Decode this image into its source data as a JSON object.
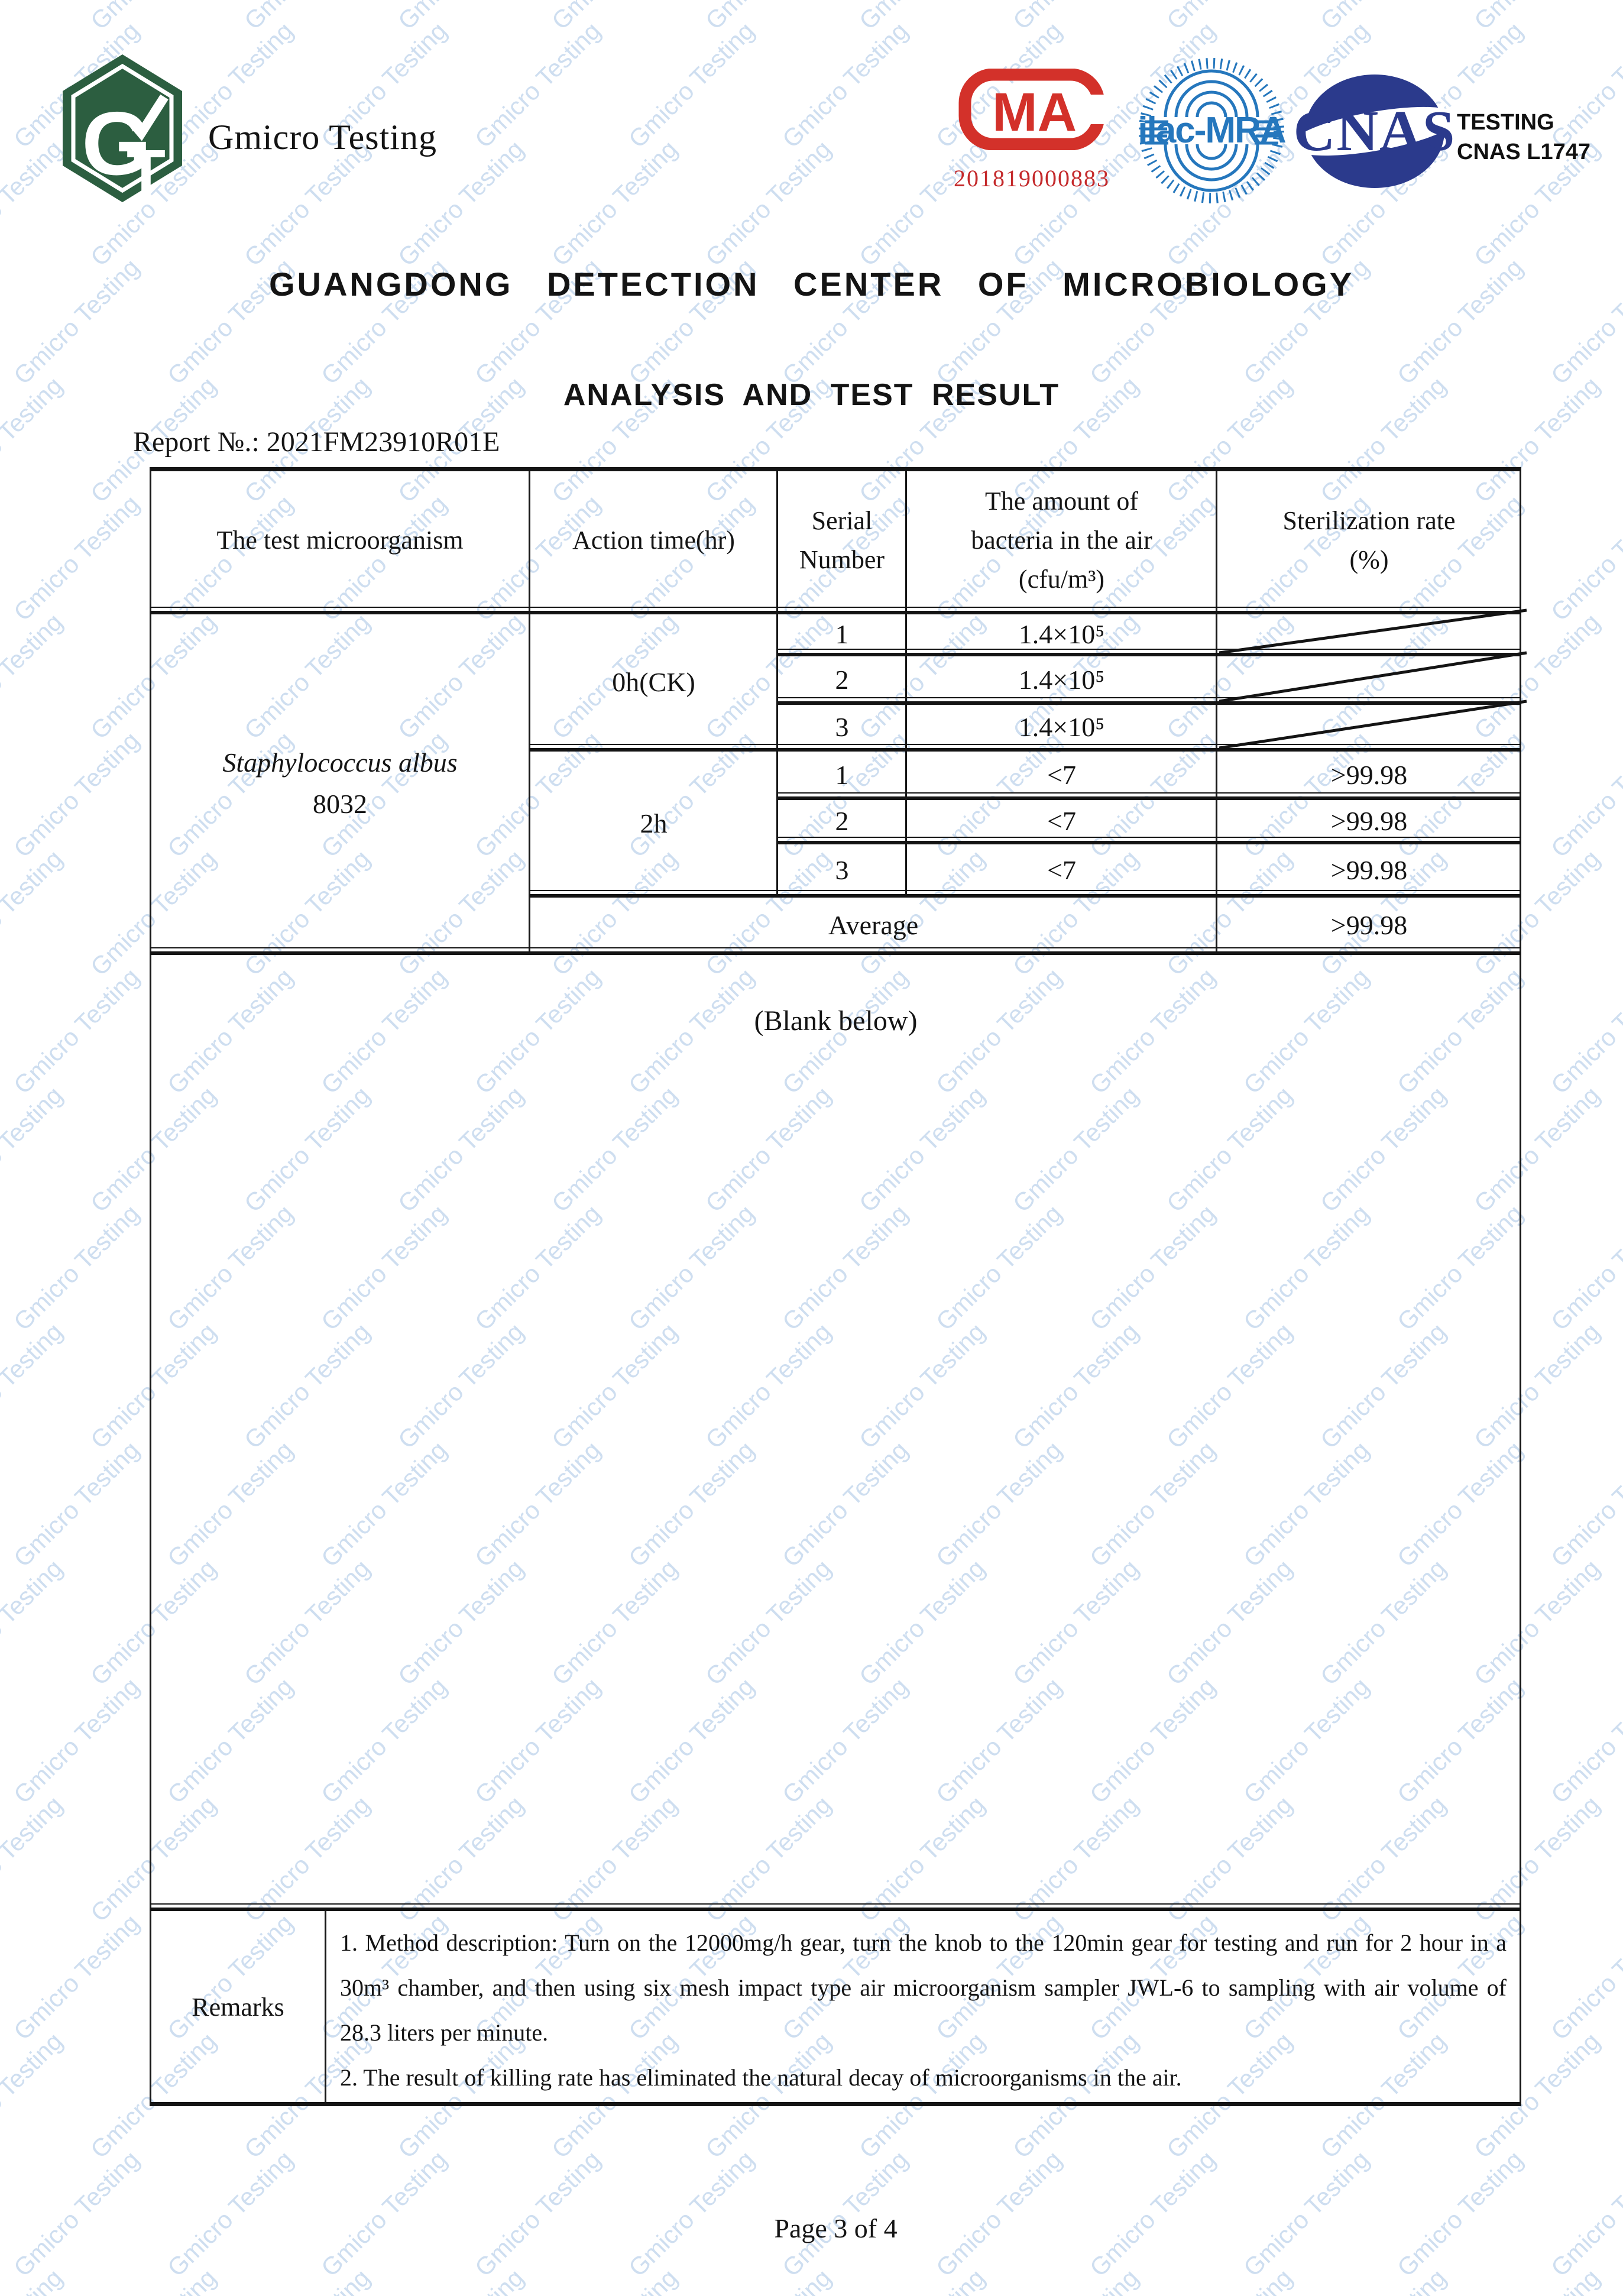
{
  "watermark": {
    "text": "Gmicro Testing"
  },
  "colors": {
    "logo_green": "#2c5e40",
    "cma_red": "#d3312a",
    "ilac_blue": "#2577bd",
    "cnas_navy": "#2b3a8c",
    "watermark_blue": "#9ebee2"
  },
  "header": {
    "brand": "Gmicro Testing",
    "logo": {
      "monogram_g": "G",
      "monogram_t": "T"
    },
    "cma": {
      "letters": "MA",
      "number": "201819000883"
    },
    "ilac": {
      "label": "ilac-MRA"
    },
    "cnas": {
      "letters": "CNAS",
      "caption_line1": "TESTING",
      "caption_line2": "CNAS L1747"
    }
  },
  "titles": {
    "organization": "GUANGDONG DETECTION CENTER OF MICROBIOLOGY",
    "document": "ANALYSIS AND TEST RESULT",
    "report_no": "Report №.: 2021FM23910R01E"
  },
  "table": {
    "header": {
      "col1": "The test microorganism",
      "col2": "Action time(hr)",
      "col3_line1": "Serial",
      "col3_line2": "Number",
      "col4_line1": "The amount of",
      "col4_line2": "bacteria in the air",
      "col4_line3": "(cfu/m³)",
      "col5_line1": "Sterilization rate",
      "col5_line2": "(%)"
    },
    "microorganism": {
      "name": "Staphylococcus albus",
      "strain": "8032"
    },
    "groups": [
      {
        "action_time": "0h(CK)",
        "rows": [
          {
            "serial": "1",
            "amount": "1.4×10⁵",
            "rate": ""
          },
          {
            "serial": "2",
            "amount": "1.4×10⁵",
            "rate": ""
          },
          {
            "serial": "3",
            "amount": "1.4×10⁵",
            "rate": ""
          }
        ]
      },
      {
        "action_time": "2h",
        "rows": [
          {
            "serial": "1",
            "amount": "<7",
            "rate": ">99.98"
          },
          {
            "serial": "2",
            "amount": "<7",
            "rate": ">99.98"
          },
          {
            "serial": "3",
            "amount": "<7",
            "rate": ">99.98"
          }
        ]
      }
    ],
    "average": {
      "label": "Average",
      "rate": ">99.98"
    },
    "blank_note": "(Blank below)"
  },
  "remarks": {
    "label": "Remarks",
    "item1": "1. Method description: Turn on the 12000mg/h gear, turn the knob to the 120min gear for testing and run for 2 hour in a 30m³ chamber, and then using six mesh impact type air microorganism sampler JWL-6 to sampling with air volume of 28.3 liters per minute.",
    "item2": "2. The result of killing rate has eliminated the natural decay of microorganisms in the air."
  },
  "footer": {
    "page": "Page 3 of 4"
  }
}
